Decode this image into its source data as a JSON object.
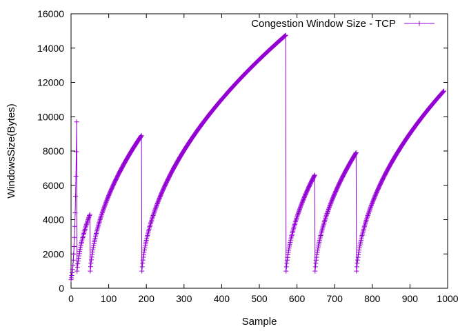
{
  "chart_data": {
    "type": "line",
    "title": "",
    "xlabel": "Sample",
    "ylabel": "WindowsSize(Bytes)",
    "xlim": [
      0,
      1000
    ],
    "ylim": [
      0,
      16000
    ],
    "xticks": [
      "0",
      "100",
      "200",
      "300",
      "400",
      "500",
      "600",
      "700",
      "800",
      "900",
      "1000"
    ],
    "yticks": [
      "0",
      "2000",
      "4000",
      "6000",
      "8000",
      "10000",
      "12000",
      "14000",
      "16000"
    ],
    "grid": false,
    "legend_position": "top-right",
    "series": [
      {
        "name": "Congestion Window Size - TCP",
        "color": "#9400d3",
        "marker": "plus",
        "segments": [
          {
            "x_start": 0,
            "x_end": 15,
            "y_start": 500,
            "y_end": 9700,
            "curve": "exponential"
          },
          {
            "x_start": 16,
            "x_end": 50,
            "y_start": 1000,
            "y_end": 4300,
            "curve": "sqrt"
          },
          {
            "x_start": 51,
            "x_end": 187,
            "y_start": 1000,
            "y_end": 8900,
            "curve": "sqrt"
          },
          {
            "x_start": 188,
            "x_end": 570,
            "y_start": 1000,
            "y_end": 14750,
            "curve": "sqrt"
          },
          {
            "x_start": 571,
            "x_end": 647,
            "y_start": 1000,
            "y_end": 6600,
            "curve": "sqrt"
          },
          {
            "x_start": 648,
            "x_end": 757,
            "y_start": 1000,
            "y_end": 7900,
            "curve": "sqrt"
          },
          {
            "x_start": 758,
            "x_end": 990,
            "y_start": 1000,
            "y_end": 11500,
            "curve": "sqrt"
          }
        ]
      }
    ]
  }
}
